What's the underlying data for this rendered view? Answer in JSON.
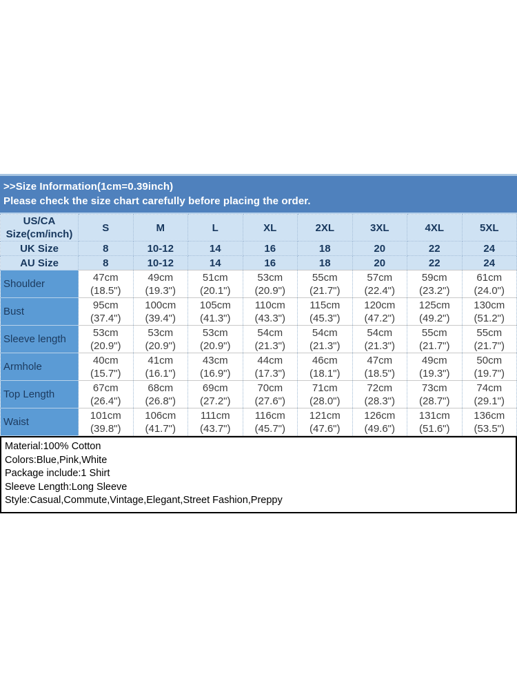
{
  "banner": {
    "line1": ">>Size Information(1cm=0.39inch)",
    "line2": "Please check the size chart carefully before placing the order."
  },
  "size_table": {
    "corner_label": "US/CA Size(cm/inch)",
    "size_headers": [
      "S",
      "M",
      "L",
      "XL",
      "2XL",
      "3XL",
      "4XL",
      "5XL"
    ],
    "region_rows": [
      {
        "label": "UK Size",
        "values": [
          "8",
          "10-12",
          "14",
          "16",
          "18",
          "20",
          "22",
          "24"
        ]
      },
      {
        "label": "AU Size",
        "values": [
          "8",
          "10-12",
          "14",
          "16",
          "18",
          "20",
          "22",
          "24"
        ]
      }
    ],
    "measurement_rows": [
      {
        "label": "Shoulder",
        "values": [
          {
            "cm": "47cm",
            "inch": "(18.5\")"
          },
          {
            "cm": "49cm",
            "inch": "(19.3\")"
          },
          {
            "cm": "51cm",
            "inch": "(20.1\")"
          },
          {
            "cm": "53cm",
            "inch": "(20.9\")"
          },
          {
            "cm": "55cm",
            "inch": "(21.7\")"
          },
          {
            "cm": "57cm",
            "inch": "(22.4\")"
          },
          {
            "cm": "59cm",
            "inch": "(23.2\")"
          },
          {
            "cm": "61cm",
            "inch": "(24.0\")"
          }
        ]
      },
      {
        "label": "Bust",
        "values": [
          {
            "cm": "95cm",
            "inch": "(37.4\")"
          },
          {
            "cm": "100cm",
            "inch": "(39.4\")"
          },
          {
            "cm": "105cm",
            "inch": "(41.3\")"
          },
          {
            "cm": "110cm",
            "inch": "(43.3\")"
          },
          {
            "cm": "115cm",
            "inch": "(45.3\")"
          },
          {
            "cm": "120cm",
            "inch": "(47.2\")"
          },
          {
            "cm": "125cm",
            "inch": "(49.2\")"
          },
          {
            "cm": "130cm",
            "inch": "(51.2\")"
          }
        ]
      },
      {
        "label": "Sleeve length",
        "values": [
          {
            "cm": "53cm",
            "inch": "(20.9\")"
          },
          {
            "cm": "53cm",
            "inch": "(20.9\")"
          },
          {
            "cm": "53cm",
            "inch": "(20.9\")"
          },
          {
            "cm": "54cm",
            "inch": "(21.3\")"
          },
          {
            "cm": "54cm",
            "inch": "(21.3\")"
          },
          {
            "cm": "54cm",
            "inch": "(21.3\")"
          },
          {
            "cm": "55cm",
            "inch": "(21.7\")"
          },
          {
            "cm": "55cm",
            "inch": "(21.7\")"
          }
        ]
      },
      {
        "label": "Armhole",
        "values": [
          {
            "cm": "40cm",
            "inch": "(15.7\")"
          },
          {
            "cm": "41cm",
            "inch": "(16.1\")"
          },
          {
            "cm": "43cm",
            "inch": "(16.9\")"
          },
          {
            "cm": "44cm",
            "inch": "(17.3\")"
          },
          {
            "cm": "46cm",
            "inch": "(18.1\")"
          },
          {
            "cm": "47cm",
            "inch": "(18.5\")"
          },
          {
            "cm": "49cm",
            "inch": "(19.3\")"
          },
          {
            "cm": "50cm",
            "inch": "(19.7\")"
          }
        ]
      },
      {
        "label": "Top Length",
        "values": [
          {
            "cm": "67cm",
            "inch": "(26.4\")"
          },
          {
            "cm": "68cm",
            "inch": "(26.8\")"
          },
          {
            "cm": "69cm",
            "inch": "(27.2\")"
          },
          {
            "cm": "70cm",
            "inch": "(27.6\")"
          },
          {
            "cm": "71cm",
            "inch": "(28.0\")"
          },
          {
            "cm": "72cm",
            "inch": "(28.3\")"
          },
          {
            "cm": "73cm",
            "inch": "(28.7\")"
          },
          {
            "cm": "74cm",
            "inch": "(29.1\")"
          }
        ]
      },
      {
        "label": "Waist",
        "values": [
          {
            "cm": "101cm",
            "inch": "(39.8\")"
          },
          {
            "cm": "106cm",
            "inch": "(41.7\")"
          },
          {
            "cm": "111cm",
            "inch": "(43.7\")"
          },
          {
            "cm": "116cm",
            "inch": "(45.7\")"
          },
          {
            "cm": "121cm",
            "inch": "(47.6\")"
          },
          {
            "cm": "126cm",
            "inch": "(49.6\")"
          },
          {
            "cm": "131cm",
            "inch": "(51.6\")"
          },
          {
            "cm": "136cm",
            "inch": "(53.5\")"
          }
        ]
      }
    ]
  },
  "product_info": {
    "lines": [
      "Material:100% Cotton",
      "Colors:Blue,Pink,White",
      "Package include:1 Shirt",
      "Sleeve Length:Long Sleeve",
      "Style:Casual,Commute,Vintage,Elegant,Street Fashion,Preppy"
    ]
  },
  "colors": {
    "banner_bg": "#4f81bd",
    "banner_text": "#ffffff",
    "header_row_bg": "#cfe2f3",
    "header_text": "#17375d",
    "label_column_bg": "#5b9bd5",
    "data_text": "#3d3d3d",
    "info_box_border": "#000000"
  }
}
